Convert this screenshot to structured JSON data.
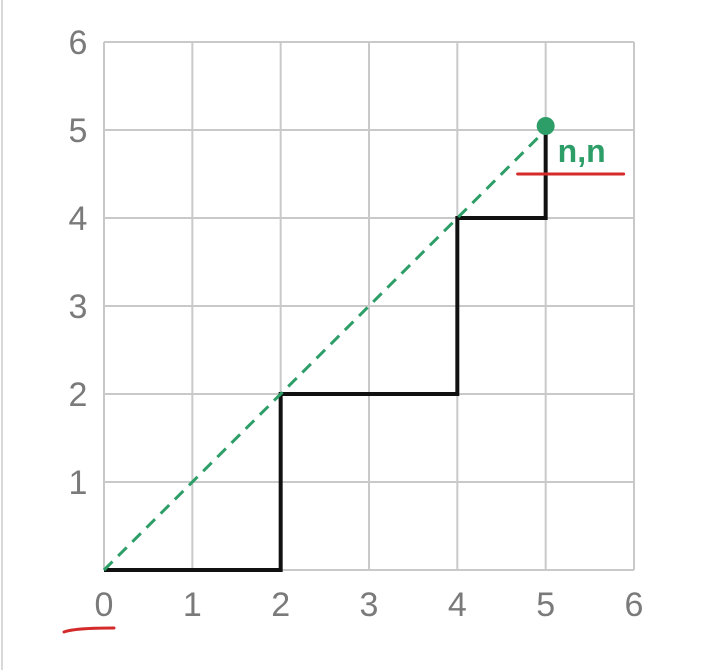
{
  "chart_data": {
    "type": "line",
    "title": "",
    "xlabel": "",
    "ylabel": "",
    "xlim": [
      0,
      6
    ],
    "ylim": [
      0,
      6
    ],
    "grid": true,
    "x_ticks": [
      "0",
      "1",
      "2",
      "3",
      "4",
      "5",
      "6"
    ],
    "y_ticks": [
      "1",
      "2",
      "3",
      "4",
      "5",
      "6"
    ],
    "series": [
      {
        "style": "solid",
        "color": "#111111",
        "points": [
          [
            0,
            0
          ],
          [
            2,
            0
          ],
          [
            2,
            2
          ],
          [
            4,
            2
          ],
          [
            4,
            4
          ],
          [
            5,
            4
          ],
          [
            5,
            5
          ]
        ]
      },
      {
        "style": "dashed",
        "color": "#2e9e68",
        "points": [
          [
            0,
            0
          ],
          [
            5,
            5
          ]
        ]
      }
    ],
    "highlight_point": {
      "x": 5,
      "y": 5,
      "label": "n,n",
      "color": "#2e9e68"
    },
    "underline_color": "#d42a2a"
  }
}
